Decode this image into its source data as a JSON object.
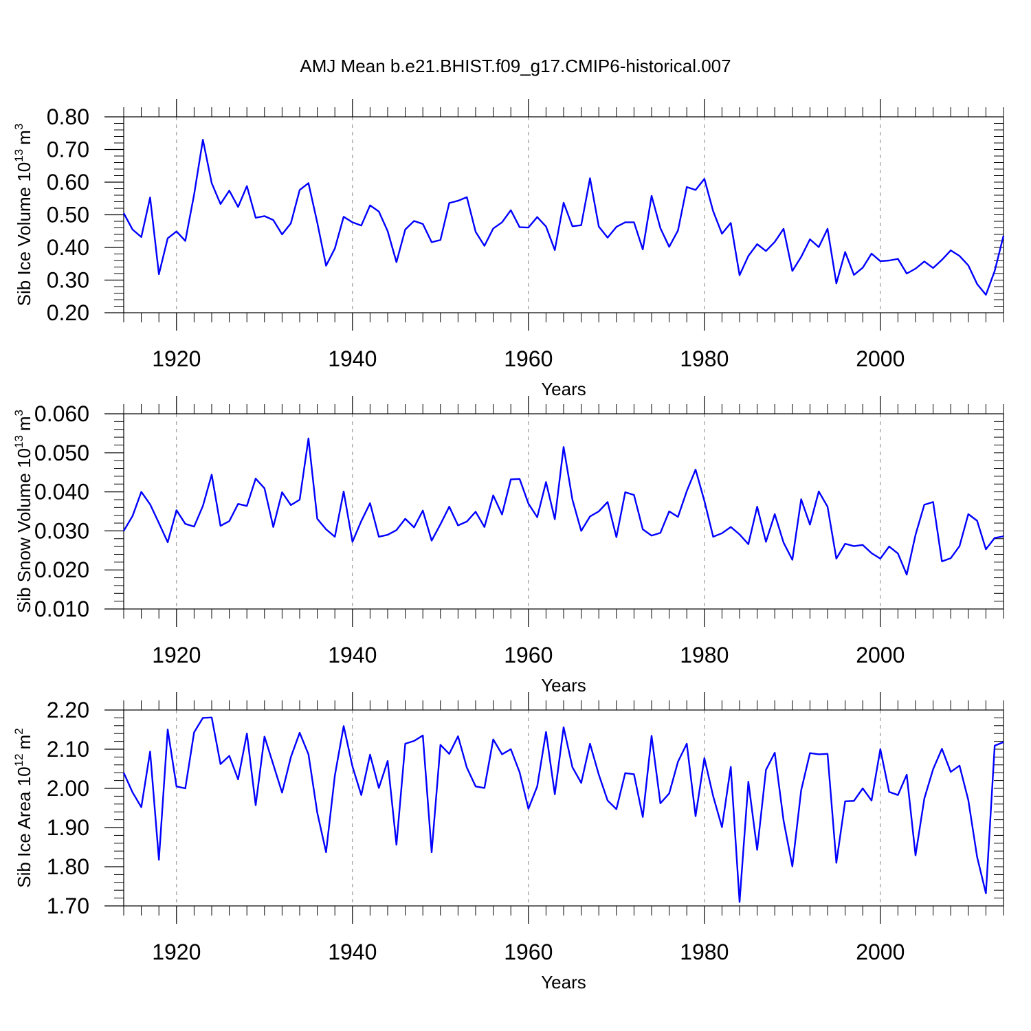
{
  "title": "AMJ Mean b.e21.BHIST.f09_g17.CMIP6-historical.007",
  "colors": {
    "line": "#0000ff",
    "axis": "#000000",
    "grid": "#999999"
  },
  "chart_data": [
    {
      "type": "line",
      "name": "ice-volume",
      "ylabel": {
        "text": "Sib Ice Volume 10",
        "exponent": "13",
        "unit": "m",
        "unit_exponent": "3"
      },
      "xlabel": "Years",
      "xlim": [
        1914,
        2014
      ],
      "ylim": [
        0.2,
        0.8
      ],
      "yticks": [
        0.2,
        0.3,
        0.4,
        0.5,
        0.6,
        0.7,
        0.8
      ],
      "ytick_labels": [
        "0.20",
        "0.30",
        "0.40",
        "0.50",
        "0.60",
        "0.70",
        "0.80"
      ],
      "xticks": [
        1920,
        1940,
        1960,
        1980,
        2000
      ],
      "xtick_labels": [
        "1920",
        "1940",
        "1960",
        "1980",
        "2000"
      ],
      "grid": "vertical-dashed",
      "x_start": 1914,
      "values": [
        0.505,
        0.455,
        0.432,
        0.553,
        0.318,
        0.428,
        0.449,
        0.42,
        0.562,
        0.73,
        0.597,
        0.533,
        0.574,
        0.524,
        0.588,
        0.491,
        0.496,
        0.484,
        0.44,
        0.474,
        0.576,
        0.597,
        0.476,
        0.344,
        0.397,
        0.494,
        0.477,
        0.467,
        0.529,
        0.51,
        0.45,
        0.355,
        0.455,
        0.481,
        0.472,
        0.416,
        0.423,
        0.536,
        0.543,
        0.554,
        0.448,
        0.405,
        0.458,
        0.477,
        0.514,
        0.462,
        0.461,
        0.493,
        0.464,
        0.392,
        0.537,
        0.465,
        0.468,
        0.612,
        0.464,
        0.43,
        0.463,
        0.477,
        0.477,
        0.394,
        0.558,
        0.459,
        0.402,
        0.452,
        0.585,
        0.576,
        0.61,
        0.511,
        0.442,
        0.475,
        0.315,
        0.374,
        0.41,
        0.389,
        0.417,
        0.457,
        0.328,
        0.371,
        0.425,
        0.401,
        0.457,
        0.29,
        0.386,
        0.316,
        0.338,
        0.381,
        0.358,
        0.36,
        0.365,
        0.32,
        0.335,
        0.357,
        0.337,
        0.362,
        0.391,
        0.374,
        0.345,
        0.288,
        0.255,
        0.328,
        0.436
      ]
    },
    {
      "type": "line",
      "name": "snow-volume",
      "ylabel": {
        "text": "Sib Snow Volume 10",
        "exponent": "13",
        "unit": "m",
        "unit_exponent": "3"
      },
      "xlabel": "Years",
      "xlim": [
        1914,
        2014
      ],
      "ylim": [
        0.01,
        0.06
      ],
      "yticks": [
        0.01,
        0.02,
        0.03,
        0.04,
        0.05,
        0.06
      ],
      "ytick_labels": [
        "0.010",
        "0.020",
        "0.030",
        "0.040",
        "0.050",
        "0.060"
      ],
      "xticks": [
        1920,
        1940,
        1960,
        1980,
        2000
      ],
      "xtick_labels": [
        "1920",
        "1940",
        "1960",
        "1980",
        "2000"
      ],
      "grid": "vertical-dashed",
      "x_start": 1914,
      "values": [
        0.03,
        0.0338,
        0.04,
        0.0368,
        0.032,
        0.0271,
        0.0353,
        0.0318,
        0.0311,
        0.0364,
        0.0444,
        0.0313,
        0.0325,
        0.0369,
        0.0364,
        0.0434,
        0.0409,
        0.031,
        0.0399,
        0.0366,
        0.038,
        0.0537,
        0.0331,
        0.0304,
        0.0285,
        0.0401,
        0.0272,
        0.0325,
        0.0371,
        0.0285,
        0.029,
        0.0302,
        0.0331,
        0.0309,
        0.0352,
        0.0275,
        0.0317,
        0.0362,
        0.0314,
        0.0324,
        0.0349,
        0.031,
        0.0391,
        0.0342,
        0.0432,
        0.0433,
        0.037,
        0.0335,
        0.0425,
        0.033,
        0.0515,
        0.038,
        0.03,
        0.0337,
        0.035,
        0.0374,
        0.0284,
        0.0399,
        0.0392,
        0.0304,
        0.0288,
        0.0295,
        0.035,
        0.0336,
        0.0402,
        0.0457,
        0.0377,
        0.0285,
        0.0294,
        0.031,
        0.0291,
        0.0266,
        0.0362,
        0.0272,
        0.0343,
        0.027,
        0.0226,
        0.0381,
        0.0316,
        0.0401,
        0.0362,
        0.0229,
        0.0267,
        0.0261,
        0.0264,
        0.0243,
        0.0229,
        0.026,
        0.0242,
        0.0188,
        0.029,
        0.0367,
        0.0374,
        0.0222,
        0.023,
        0.0261,
        0.0343,
        0.0326,
        0.0253,
        0.0282,
        0.0286
      ]
    },
    {
      "type": "line",
      "name": "ice-area",
      "ylabel": {
        "text": "Sib Ice Area 10",
        "exponent": "12",
        "unit": "m",
        "unit_exponent": "2"
      },
      "xlabel": "Years",
      "xlim": [
        1914,
        2014
      ],
      "ylim": [
        1.7,
        2.2
      ],
      "yticks": [
        1.7,
        1.8,
        1.9,
        2.0,
        2.1,
        2.2
      ],
      "ytick_labels": [
        "1.70",
        "1.80",
        "1.90",
        "2.00",
        "2.10",
        "2.20"
      ],
      "xticks": [
        1920,
        1940,
        1960,
        1980,
        2000
      ],
      "xtick_labels": [
        "1920",
        "1940",
        "1960",
        "1980",
        "2000"
      ],
      "grid": "vertical-dashed",
      "x_start": 1914,
      "values": [
        2.04,
        1.99,
        1.952,
        2.094,
        1.818,
        2.15,
        2.005,
        2.0,
        2.143,
        2.18,
        2.181,
        2.062,
        2.083,
        2.023,
        2.14,
        1.957,
        2.132,
        2.061,
        1.989,
        2.08,
        2.142,
        2.087,
        1.938,
        1.837,
        2.033,
        2.159,
        2.056,
        1.983,
        2.086,
        2.001,
        2.07,
        1.856,
        2.114,
        2.121,
        2.135,
        1.837,
        2.111,
        2.088,
        2.133,
        2.053,
        2.005,
        2.001,
        2.125,
        2.087,
        2.1,
        2.041,
        1.948,
        2.005,
        2.144,
        1.985,
        2.156,
        2.054,
        2.014,
        2.114,
        2.035,
        1.969,
        1.947,
        2.039,
        2.036,
        1.927,
        2.134,
        1.962,
        1.987,
        2.068,
        2.114,
        1.929,
        2.077,
        1.98,
        1.901,
        2.055,
        1.71,
        2.017,
        1.843,
        2.047,
        2.091,
        1.918,
        1.801,
        1.995,
        2.09,
        2.087,
        2.088,
        1.81,
        1.967,
        1.968,
        2.0,
        1.969,
        2.1,
        1.991,
        1.983,
        2.035,
        1.829,
        1.974,
        2.049,
        2.101,
        2.042,
        2.058,
        1.97,
        1.825,
        1.732,
        2.109,
        2.118
      ]
    }
  ]
}
